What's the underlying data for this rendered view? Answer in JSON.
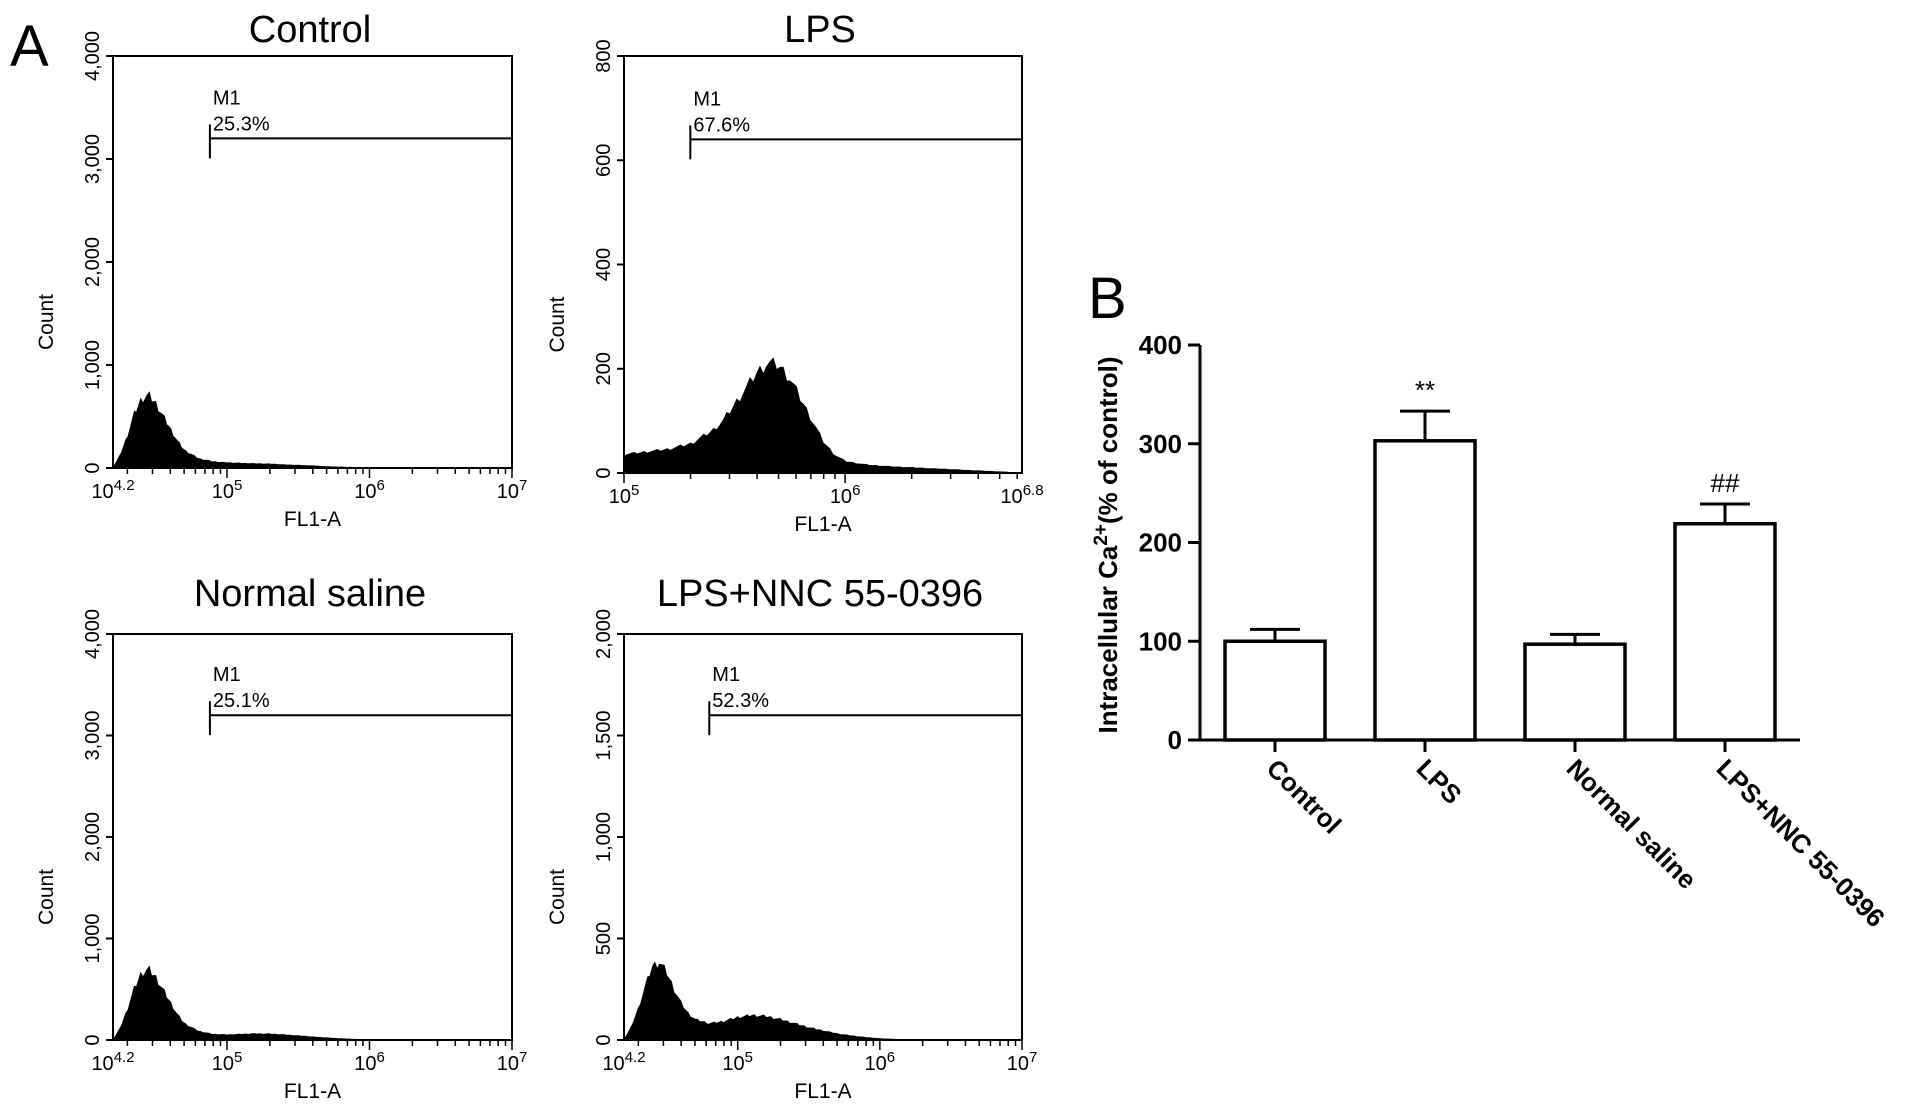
{
  "panel_a_label": "A",
  "panel_b_label": "B",
  "chart_data": [
    {
      "type": "area",
      "title": "Control",
      "xlabel": "FL1-A",
      "ylabel": "Count",
      "x_scale": "log10",
      "x_tick_labels": [
        "10^4.2",
        "10^5",
        "10^6",
        "10^7"
      ],
      "y_tick_labels": [
        "0",
        "1,000",
        "2,000",
        "3,000",
        "4,000"
      ],
      "xlim": [
        4.2,
        7
      ],
      "ylim": [
        0,
        4000
      ],
      "marker": {
        "name": "M1",
        "percent": "25.3%",
        "start_log10": 4.88
      },
      "series": [
        {
          "x": [
            4.2,
            4.25,
            4.3,
            4.35,
            4.4,
            4.45,
            4.5,
            4.55,
            4.6,
            4.65,
            4.7,
            4.8,
            4.9,
            5.0,
            5.1,
            5.2,
            5.3,
            5.4,
            5.5,
            5.6,
            5.7,
            5.8,
            5.9,
            6.0
          ],
          "values": [
            0,
            120,
            300,
            520,
            660,
            700,
            620,
            500,
            380,
            260,
            170,
            90,
            60,
            50,
            45,
            40,
            38,
            30,
            25,
            20,
            12,
            8,
            4,
            0
          ]
        }
      ]
    },
    {
      "type": "area",
      "title": "LPS",
      "xlabel": "FL1-A",
      "ylabel": "Count",
      "x_scale": "log10",
      "x_tick_labels": [
        "10^5",
        "10^6",
        "10^6.8"
      ],
      "y_tick_labels": [
        "0",
        "200",
        "400",
        "600",
        "800"
      ],
      "xlim": [
        5,
        6.8
      ],
      "ylim": [
        0,
        800
      ],
      "marker": {
        "name": "M1",
        "percent": "67.6%",
        "start_log10": 5.3
      },
      "series": [
        {
          "x": [
            5.0,
            5.1,
            5.2,
            5.3,
            5.4,
            5.45,
            5.5,
            5.55,
            5.6,
            5.65,
            5.7,
            5.75,
            5.8,
            5.85,
            5.9,
            5.95,
            6.0,
            6.1,
            6.2,
            6.3,
            6.4,
            6.5,
            6.6,
            6.7,
            6.8
          ],
          "values": [
            35,
            40,
            45,
            55,
            80,
            100,
            130,
            160,
            190,
            210,
            205,
            180,
            140,
            100,
            60,
            35,
            22,
            15,
            12,
            10,
            8,
            6,
            4,
            2,
            0
          ]
        }
      ]
    },
    {
      "type": "area",
      "title": "Normal saline",
      "xlabel": "FL1-A",
      "ylabel": "Count",
      "x_scale": "log10",
      "x_tick_labels": [
        "10^4.2",
        "10^5",
        "10^6",
        "10^7"
      ],
      "y_tick_labels": [
        "0",
        "1,000",
        "2,000",
        "3,000",
        "4,000"
      ],
      "xlim": [
        4.2,
        7
      ],
      "ylim": [
        0,
        4000
      ],
      "marker": {
        "name": "M1",
        "percent": "25.1%",
        "start_log10": 4.88
      },
      "series": [
        {
          "x": [
            4.2,
            4.25,
            4.3,
            4.35,
            4.4,
            4.45,
            4.5,
            4.55,
            4.6,
            4.65,
            4.7,
            4.8,
            4.9,
            5.0,
            5.1,
            5.2,
            5.3,
            5.4,
            5.5,
            5.6,
            5.7,
            5.8,
            5.9,
            6.0
          ],
          "values": [
            0,
            110,
            290,
            500,
            650,
            690,
            610,
            490,
            370,
            250,
            160,
            85,
            55,
            50,
            55,
            60,
            58,
            50,
            40,
            30,
            20,
            12,
            6,
            0
          ]
        }
      ]
    },
    {
      "type": "area",
      "title": "LPS+NNC 55-0396",
      "xlabel": "FL1-A",
      "ylabel": "Count",
      "x_scale": "log10",
      "x_tick_labels": [
        "10^4.2",
        "10^5",
        "10^6",
        "10^7"
      ],
      "y_tick_labels": [
        "0",
        "500",
        "1,000",
        "1,500",
        "2,000"
      ],
      "xlim": [
        4.2,
        7
      ],
      "ylim": [
        0,
        2000
      ],
      "marker": {
        "name": "M1",
        "percent": "52.3%",
        "start_log10": 4.8
      },
      "series": [
        {
          "x": [
            4.2,
            4.25,
            4.3,
            4.35,
            4.4,
            4.45,
            4.5,
            4.55,
            4.6,
            4.65,
            4.7,
            4.8,
            4.9,
            5.0,
            5.1,
            5.2,
            5.3,
            5.4,
            5.5,
            5.6,
            5.7,
            5.8,
            5.9,
            6.0,
            6.1,
            6.2
          ],
          "values": [
            0,
            60,
            150,
            260,
            360,
            380,
            330,
            250,
            180,
            130,
            100,
            80,
            90,
            110,
            120,
            115,
            100,
            80,
            60,
            45,
            30,
            20,
            12,
            6,
            3,
            0
          ]
        }
      ]
    },
    {
      "type": "bar",
      "ylabel_main": "Intracellular Ca",
      "ylabel_sup": "2+",
      "ylabel_rest": "(% of control)",
      "categories": [
        "Control",
        "LPS",
        "Normal saline",
        "LPS+NNC 55-0396"
      ],
      "values": [
        100,
        303,
        97,
        219
      ],
      "errors": [
        12,
        30,
        10,
        20
      ],
      "annotations": [
        "",
        "**",
        "",
        "##"
      ],
      "ylim": [
        0,
        400
      ],
      "y_ticks": [
        0,
        100,
        200,
        300,
        400
      ],
      "y_tick_labels": [
        "0",
        "100",
        "200",
        "300",
        "400"
      ]
    }
  ]
}
